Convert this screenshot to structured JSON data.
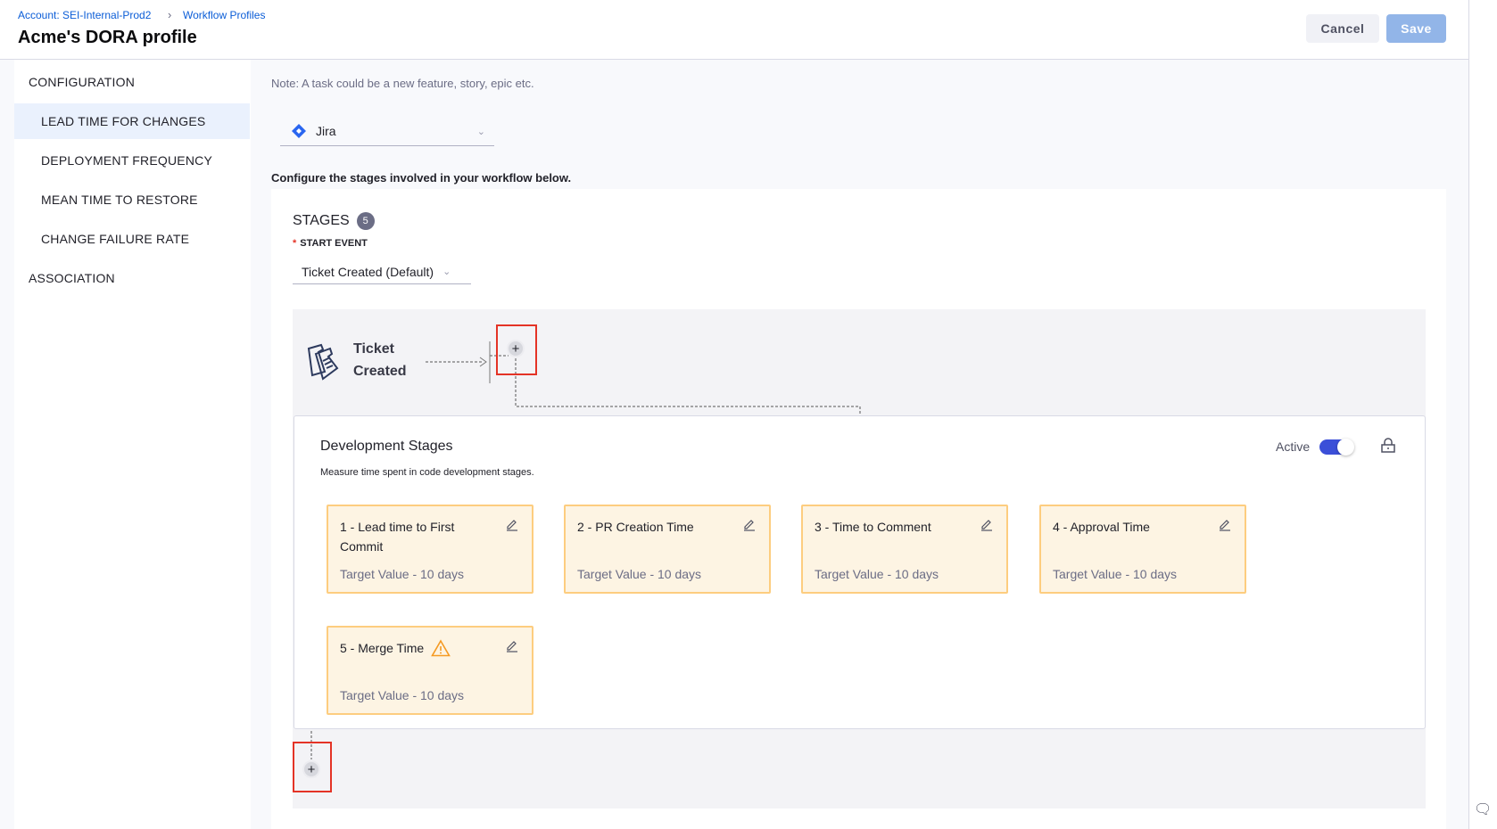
{
  "breadcrumb": [
    {
      "label": "Account: SEI-Internal-Prod2"
    },
    {
      "label": "Workflow Profiles"
    }
  ],
  "header": {
    "title": "Acme's DORA profile",
    "cancel_label": "Cancel",
    "save_label": "Save"
  },
  "sidebar": {
    "items": [
      {
        "label": "CONFIGURATION",
        "level": "top",
        "active": false
      },
      {
        "label": "LEAD TIME FOR CHANGES",
        "level": "sub",
        "active": true
      },
      {
        "label": "DEPLOYMENT FREQUENCY",
        "level": "sub",
        "active": false
      },
      {
        "label": "MEAN TIME TO RESTORE",
        "level": "sub",
        "active": false
      },
      {
        "label": "CHANGE FAILURE RATE",
        "level": "sub",
        "active": false
      },
      {
        "label": "ASSOCIATION",
        "level": "top",
        "active": false
      }
    ]
  },
  "main": {
    "note": "Note: A task could be a new feature, story, epic etc.",
    "integration": {
      "value": "Jira",
      "icon": "jira-icon"
    },
    "configure_text": "Configure the stages involved in your workflow below.",
    "stages": {
      "label": "STAGES",
      "count": "5"
    },
    "start_event": {
      "label": "START EVENT",
      "value": "Ticket Created (Default)"
    },
    "ticket_node": {
      "line1": "Ticket",
      "line2": "Created",
      "icon": "ticket-icon"
    },
    "dev_stages": {
      "title": "Development Stages",
      "subtitle": "Measure time spent in code development stages.",
      "active_label": "Active",
      "active": true,
      "cards": [
        {
          "title": "1 - Lead time to First Commit",
          "target": "Target Value - 10 days",
          "warning": false
        },
        {
          "title": "2 - PR Creation Time",
          "target": "Target Value - 10 days",
          "warning": false
        },
        {
          "title": "3 - Time to Comment",
          "target": "Target Value - 10 days",
          "warning": false
        },
        {
          "title": "4 - Approval Time",
          "target": "Target Value - 10 days",
          "warning": false
        },
        {
          "title": "5 - Merge Time",
          "target": "Target Value - 10 days",
          "warning": true
        }
      ]
    }
  },
  "colors": {
    "accent": "#0b5dd7",
    "toggle": "#3b4fd8",
    "card_bg": "#fdf4e3",
    "card_border": "#fdcd7f",
    "warning": "#f59a23",
    "highlight": "#e43326"
  }
}
